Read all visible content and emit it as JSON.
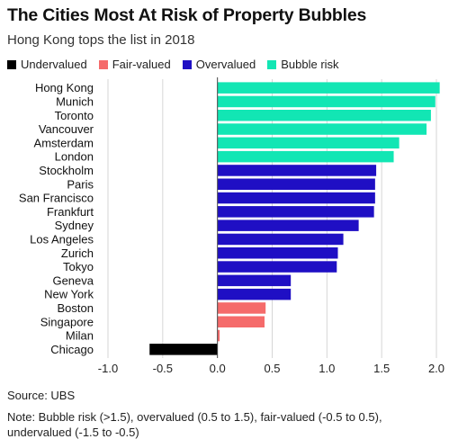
{
  "chart_data": {
    "type": "bar",
    "orientation": "horizontal",
    "title": "The Cities Most At Risk of Property Bubbles",
    "subtitle": "Hong Kong tops the list in 2018",
    "legend": [
      {
        "label": "Undervalued",
        "color": "#000000"
      },
      {
        "label": "Fair-valued",
        "color": "#f56b6b"
      },
      {
        "label": "Overvalued",
        "color": "#1f0fc4"
      },
      {
        "label": "Bubble risk",
        "color": "#12e6b4"
      }
    ],
    "legend_position": "top-left",
    "xlim": [
      -1.0,
      2.0
    ],
    "xticks": [
      "-1.0",
      "-0.5",
      "0.0",
      "0.5",
      "1.0",
      "1.5",
      "2.0"
    ],
    "grid": "vertical",
    "categories": [
      "Hong Kong",
      "Munich",
      "Toronto",
      "Vancouver",
      "Amsterdam",
      "London",
      "Stockholm",
      "Paris",
      "San Francisco",
      "Frankfurt",
      "Sydney",
      "Los Angeles",
      "Zurich",
      "Tokyo",
      "Geneva",
      "New York",
      "Boston",
      "Singapore",
      "Milan",
      "Chicago"
    ],
    "values": [
      2.03,
      1.99,
      1.95,
      1.91,
      1.66,
      1.61,
      1.45,
      1.44,
      1.44,
      1.43,
      1.29,
      1.15,
      1.1,
      1.09,
      0.67,
      0.67,
      0.44,
      0.43,
      0.02,
      -0.62
    ],
    "colors": [
      "#12e6b4",
      "#12e6b4",
      "#12e6b4",
      "#12e6b4",
      "#12e6b4",
      "#12e6b4",
      "#1f0fc4",
      "#1f0fc4",
      "#1f0fc4",
      "#1f0fc4",
      "#1f0fc4",
      "#1f0fc4",
      "#1f0fc4",
      "#1f0fc4",
      "#1f0fc4",
      "#1f0fc4",
      "#f56b6b",
      "#f56b6b",
      "#f56b6b",
      "#000000"
    ]
  },
  "footer": {
    "source": "Source: UBS",
    "note": "Note: Bubble risk (>1.5), overvalued (0.5 to 1.5), fair-valued (-0.5 to 0.5), undervalued (-1.5 to -0.5)"
  }
}
